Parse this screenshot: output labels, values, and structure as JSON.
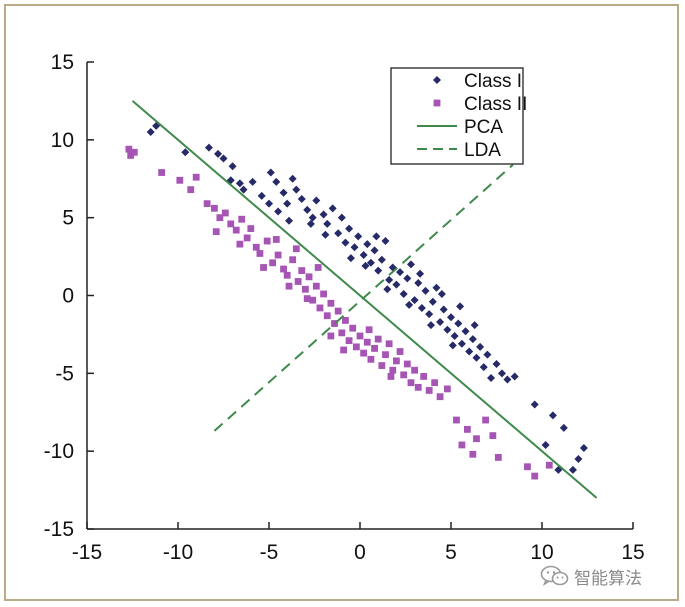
{
  "chart_data": {
    "type": "scatter",
    "title": "",
    "xlabel": "",
    "ylabel": "",
    "xlim": [
      -15,
      15
    ],
    "ylim": [
      -15,
      15
    ],
    "xticks": [
      "-15",
      "-10",
      "-5",
      "0",
      "5",
      "10",
      "15"
    ],
    "yticks": [
      "15",
      "10",
      "5",
      "0",
      "-5",
      "-10",
      "-15"
    ],
    "grid": false,
    "legend_position": "top-right",
    "series": [
      {
        "name": "Class I",
        "marker": "diamond",
        "color": "#262a66",
        "points": [
          [
            -11.2,
            10.9
          ],
          [
            -11.5,
            10.5
          ],
          [
            -9.6,
            9.2
          ],
          [
            -8.3,
            9.5
          ],
          [
            -7.8,
            9.1
          ],
          [
            -7.5,
            8.8
          ],
          [
            -7.0,
            8.3
          ],
          [
            -7.1,
            7.4
          ],
          [
            -6.6,
            7.2
          ],
          [
            -6.4,
            6.8
          ],
          [
            -5.9,
            7.3
          ],
          [
            -5.4,
            6.4
          ],
          [
            -4.9,
            7.9
          ],
          [
            -4.6,
            7.3
          ],
          [
            -4.2,
            6.6
          ],
          [
            -4.0,
            5.9
          ],
          [
            -3.7,
            7.5
          ],
          [
            -3.5,
            6.8
          ],
          [
            -3.2,
            6.2
          ],
          [
            -2.9,
            5.5
          ],
          [
            -4.5,
            5.4
          ],
          [
            -5.0,
            5.9
          ],
          [
            -3.9,
            4.8
          ],
          [
            -2.6,
            5.0
          ],
          [
            -2.4,
            6.1
          ],
          [
            -2.0,
            5.2
          ],
          [
            -1.8,
            4.6
          ],
          [
            -1.5,
            5.6
          ],
          [
            -1.2,
            4.0
          ],
          [
            -1.0,
            5.0
          ],
          [
            -0.8,
            3.4
          ],
          [
            -0.6,
            4.3
          ],
          [
            -0.3,
            3.1
          ],
          [
            -0.1,
            3.8
          ],
          [
            0.2,
            2.6
          ],
          [
            0.4,
            3.3
          ],
          [
            0.6,
            2.1
          ],
          [
            0.8,
            2.9
          ],
          [
            1.0,
            1.6
          ],
          [
            1.2,
            2.3
          ],
          [
            1.4,
            3.5
          ],
          [
            1.6,
            1.0
          ],
          [
            1.8,
            1.8
          ],
          [
            2.0,
            0.7
          ],
          [
            2.2,
            1.5
          ],
          [
            2.4,
            0.1
          ],
          [
            2.6,
            1.1
          ],
          [
            2.8,
            2.0
          ],
          [
            3.0,
            -0.3
          ],
          [
            3.2,
            0.8
          ],
          [
            3.4,
            -0.8
          ],
          [
            3.6,
            0.3
          ],
          [
            3.8,
            -1.2
          ],
          [
            4.0,
            -0.4
          ],
          [
            4.2,
            0.5
          ],
          [
            4.4,
            -1.7
          ],
          [
            4.6,
            -0.9
          ],
          [
            4.8,
            -2.2
          ],
          [
            5.0,
            -1.4
          ],
          [
            5.2,
            -2.6
          ],
          [
            5.4,
            -1.8
          ],
          [
            5.6,
            -3.1
          ],
          [
            5.8,
            -2.3
          ],
          [
            6.0,
            -3.6
          ],
          [
            6.2,
            -2.8
          ],
          [
            6.4,
            -4.0
          ],
          [
            6.6,
            -3.3
          ],
          [
            6.8,
            -4.6
          ],
          [
            7.0,
            -3.8
          ],
          [
            7.2,
            -5.3
          ],
          [
            7.5,
            -4.4
          ],
          [
            7.8,
            -5.0
          ],
          [
            8.1,
            -5.4
          ],
          [
            8.5,
            -5.2
          ],
          [
            0.3,
            1.9
          ],
          [
            1.5,
            0.4
          ],
          [
            2.7,
            -0.6
          ],
          [
            3.9,
            -1.9
          ],
          [
            5.1,
            -3.2
          ],
          [
            -0.5,
            2.4
          ],
          [
            0.9,
            3.8
          ],
          [
            -1.9,
            3.9
          ],
          [
            -2.7,
            4.6
          ],
          [
            3.3,
            1.4
          ],
          [
            4.5,
            0.1
          ],
          [
            5.5,
            -0.7
          ],
          [
            6.3,
            -1.9
          ],
          [
            9.6,
            -7.0
          ],
          [
            10.6,
            -7.7
          ],
          [
            11.2,
            -8.5
          ],
          [
            12.3,
            -9.8
          ],
          [
            10.2,
            -9.6
          ],
          [
            10.9,
            -11.2
          ],
          [
            11.7,
            -11.2
          ],
          [
            12.0,
            -10.5
          ]
        ]
      },
      {
        "name": "Class II",
        "marker": "square",
        "color": "#a655b5",
        "points": [
          [
            -12.7,
            9.4
          ],
          [
            -12.4,
            9.2
          ],
          [
            -12.6,
            9.0
          ],
          [
            -10.9,
            7.9
          ],
          [
            -9.9,
            7.4
          ],
          [
            -9.0,
            7.6
          ],
          [
            -9.3,
            6.8
          ],
          [
            -8.4,
            5.9
          ],
          [
            -8.0,
            5.6
          ],
          [
            -7.7,
            5.0
          ],
          [
            -7.4,
            5.3
          ],
          [
            -7.1,
            4.6
          ],
          [
            -6.8,
            4.2
          ],
          [
            -6.5,
            4.9
          ],
          [
            -6.2,
            3.7
          ],
          [
            -6.0,
            4.3
          ],
          [
            -5.7,
            3.1
          ],
          [
            -5.5,
            2.7
          ],
          [
            -5.1,
            3.5
          ],
          [
            -4.8,
            2.1
          ],
          [
            -4.5,
            2.6
          ],
          [
            -4.2,
            1.7
          ],
          [
            -4.0,
            1.3
          ],
          [
            -3.7,
            2.3
          ],
          [
            -3.4,
            0.9
          ],
          [
            -3.2,
            1.6
          ],
          [
            -3.0,
            0.4
          ],
          [
            -2.8,
            1.2
          ],
          [
            -2.6,
            -0.3
          ],
          [
            -2.4,
            0.6
          ],
          [
            -2.2,
            -0.8
          ],
          [
            -2.0,
            0.1
          ],
          [
            -1.8,
            -1.3
          ],
          [
            -1.6,
            -0.5
          ],
          [
            -1.4,
            -1.8
          ],
          [
            -1.2,
            -1.0
          ],
          [
            -1.0,
            -2.4
          ],
          [
            -0.8,
            -1.6
          ],
          [
            -0.6,
            -2.9
          ],
          [
            -0.4,
            -2.1
          ],
          [
            -0.2,
            -3.3
          ],
          [
            0.0,
            -2.6
          ],
          [
            0.2,
            -3.7
          ],
          [
            0.4,
            -3.0
          ],
          [
            0.6,
            -4.1
          ],
          [
            0.8,
            -3.4
          ],
          [
            1.0,
            -2.8
          ],
          [
            1.2,
            -4.5
          ],
          [
            1.4,
            -3.8
          ],
          [
            1.6,
            -3.1
          ],
          [
            1.8,
            -4.8
          ],
          [
            2.0,
            -4.2
          ],
          [
            2.2,
            -3.6
          ],
          [
            2.4,
            -5.1
          ],
          [
            2.6,
            -4.4
          ],
          [
            2.8,
            -5.6
          ],
          [
            3.0,
            -4.8
          ],
          [
            3.2,
            -5.9
          ],
          [
            3.5,
            -5.2
          ],
          [
            3.8,
            -6.1
          ],
          [
            4.1,
            -5.6
          ],
          [
            4.4,
            -6.5
          ],
          [
            4.8,
            -6.0
          ],
          [
            -1.6,
            -2.6
          ],
          [
            -0.9,
            -3.5
          ],
          [
            0.5,
            -2.2
          ],
          [
            1.7,
            -5.2
          ],
          [
            -2.9,
            -0.2
          ],
          [
            -3.9,
            0.6
          ],
          [
            -5.3,
            1.8
          ],
          [
            -6.6,
            3.3
          ],
          [
            -7.9,
            4.1
          ],
          [
            -4.6,
            3.6
          ],
          [
            -3.5,
            3.0
          ],
          [
            -2.3,
            1.8
          ],
          [
            5.3,
            -8.0
          ],
          [
            5.9,
            -8.6
          ],
          [
            6.4,
            -9.2
          ],
          [
            6.9,
            -8.0
          ],
          [
            7.3,
            -9.0
          ],
          [
            5.6,
            -9.6
          ],
          [
            6.2,
            -10.2
          ],
          [
            7.6,
            -10.4
          ],
          [
            9.2,
            -11.0
          ],
          [
            9.6,
            -11.6
          ],
          [
            10.4,
            -10.9
          ]
        ]
      },
      {
        "name": "PCA",
        "marker": "line",
        "style": "solid",
        "color": "#3f8a4a",
        "points": [
          [
            -12.5,
            12.5
          ],
          [
            13.0,
            -13.0
          ]
        ]
      },
      {
        "name": "LDA",
        "marker": "line",
        "style": "dashed",
        "color": "#3f8a4a",
        "points": [
          [
            -8.0,
            -8.7
          ],
          [
            8.4,
            8.4
          ]
        ]
      }
    ]
  },
  "watermark": {
    "icon": "wechat-icon",
    "text": "智能算法"
  }
}
